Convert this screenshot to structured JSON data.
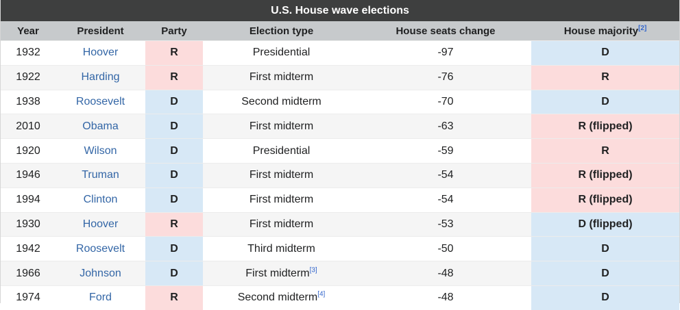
{
  "title": "U.S. House wave elections",
  "headers": {
    "year": "Year",
    "president": "President",
    "party": "Party",
    "election_type": "Election type",
    "seats_change": "House seats change",
    "majority": "House majority",
    "majority_note": "[2]"
  },
  "rows": [
    {
      "year": "1932",
      "president": "Hoover",
      "party": "R",
      "type": "Presidential",
      "type_note": "",
      "change": "-97",
      "majority": "D"
    },
    {
      "year": "1922",
      "president": "Harding",
      "party": "R",
      "type": "First midterm",
      "type_note": "",
      "change": "-76",
      "majority": "R"
    },
    {
      "year": "1938",
      "president": "Roosevelt",
      "party": "D",
      "type": "Second midterm",
      "type_note": "",
      "change": "-70",
      "majority": "D"
    },
    {
      "year": "2010",
      "president": "Obama",
      "party": "D",
      "type": "First midterm",
      "type_note": "",
      "change": "-63",
      "majority": "R (flipped)"
    },
    {
      "year": "1920",
      "president": "Wilson",
      "party": "D",
      "type": "Presidential",
      "type_note": "",
      "change": "-59",
      "majority": "R"
    },
    {
      "year": "1946",
      "president": "Truman",
      "party": "D",
      "type": "First midterm",
      "type_note": "",
      "change": "-54",
      "majority": "R (flipped)"
    },
    {
      "year": "1994",
      "president": "Clinton",
      "party": "D",
      "type": "First midterm",
      "type_note": "",
      "change": "-54",
      "majority": "R (flipped)"
    },
    {
      "year": "1930",
      "president": "Hoover",
      "party": "R",
      "type": "First midterm",
      "type_note": "",
      "change": "-53",
      "majority": "D (flipped)"
    },
    {
      "year": "1942",
      "president": "Roosevelt",
      "party": "D",
      "type": "Third midterm",
      "type_note": "",
      "change": "-50",
      "majority": "D"
    },
    {
      "year": "1966",
      "president": "Johnson",
      "party": "D",
      "type": "First midterm",
      "type_note": "[3]",
      "change": "-48",
      "majority": "D"
    },
    {
      "year": "1974",
      "president": "Ford",
      "party": "R",
      "type": "Second midterm",
      "type_note": "[4]",
      "change": "-48",
      "majority": "D"
    }
  ]
}
